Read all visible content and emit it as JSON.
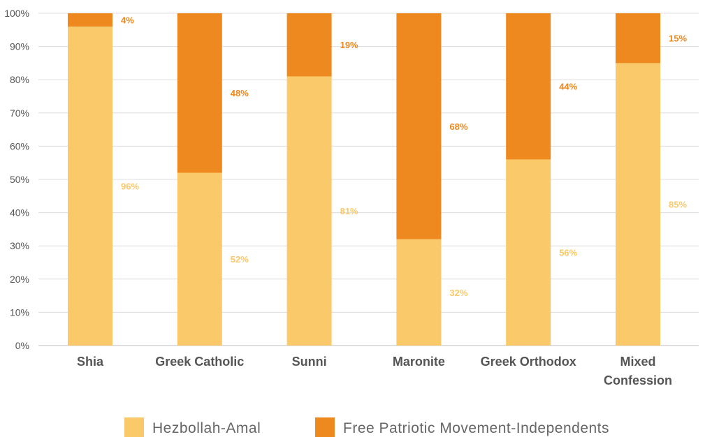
{
  "chart_data": {
    "type": "bar",
    "stacked": true,
    "categories": [
      "Shia",
      "Greek Catholic",
      "Sunni",
      "Maronite",
      "Greek Orthodox",
      "Mixed\nConfession"
    ],
    "series": [
      {
        "name": "Hezbollah-Amal",
        "values": [
          96,
          52,
          81,
          32,
          56,
          85
        ],
        "labels": [
          "96%",
          "52%",
          "81%",
          "32%",
          "56%",
          "85%"
        ],
        "color": "#FAC96A"
      },
      {
        "name": "Free Patriotic Movement-Independents",
        "values": [
          4,
          48,
          19,
          68,
          44,
          15
        ],
        "labels": [
          "4%",
          "48%",
          "19%",
          "68%",
          "44%",
          "15%"
        ],
        "color": "#EE891F"
      }
    ],
    "ylim": [
      0,
      100
    ],
    "yticks": [
      "0%",
      "10%",
      "20%",
      "30%",
      "40%",
      "50%",
      "60%",
      "70%",
      "80%",
      "90%",
      "100%"
    ],
    "grid": true,
    "legend_position": "bottom"
  }
}
